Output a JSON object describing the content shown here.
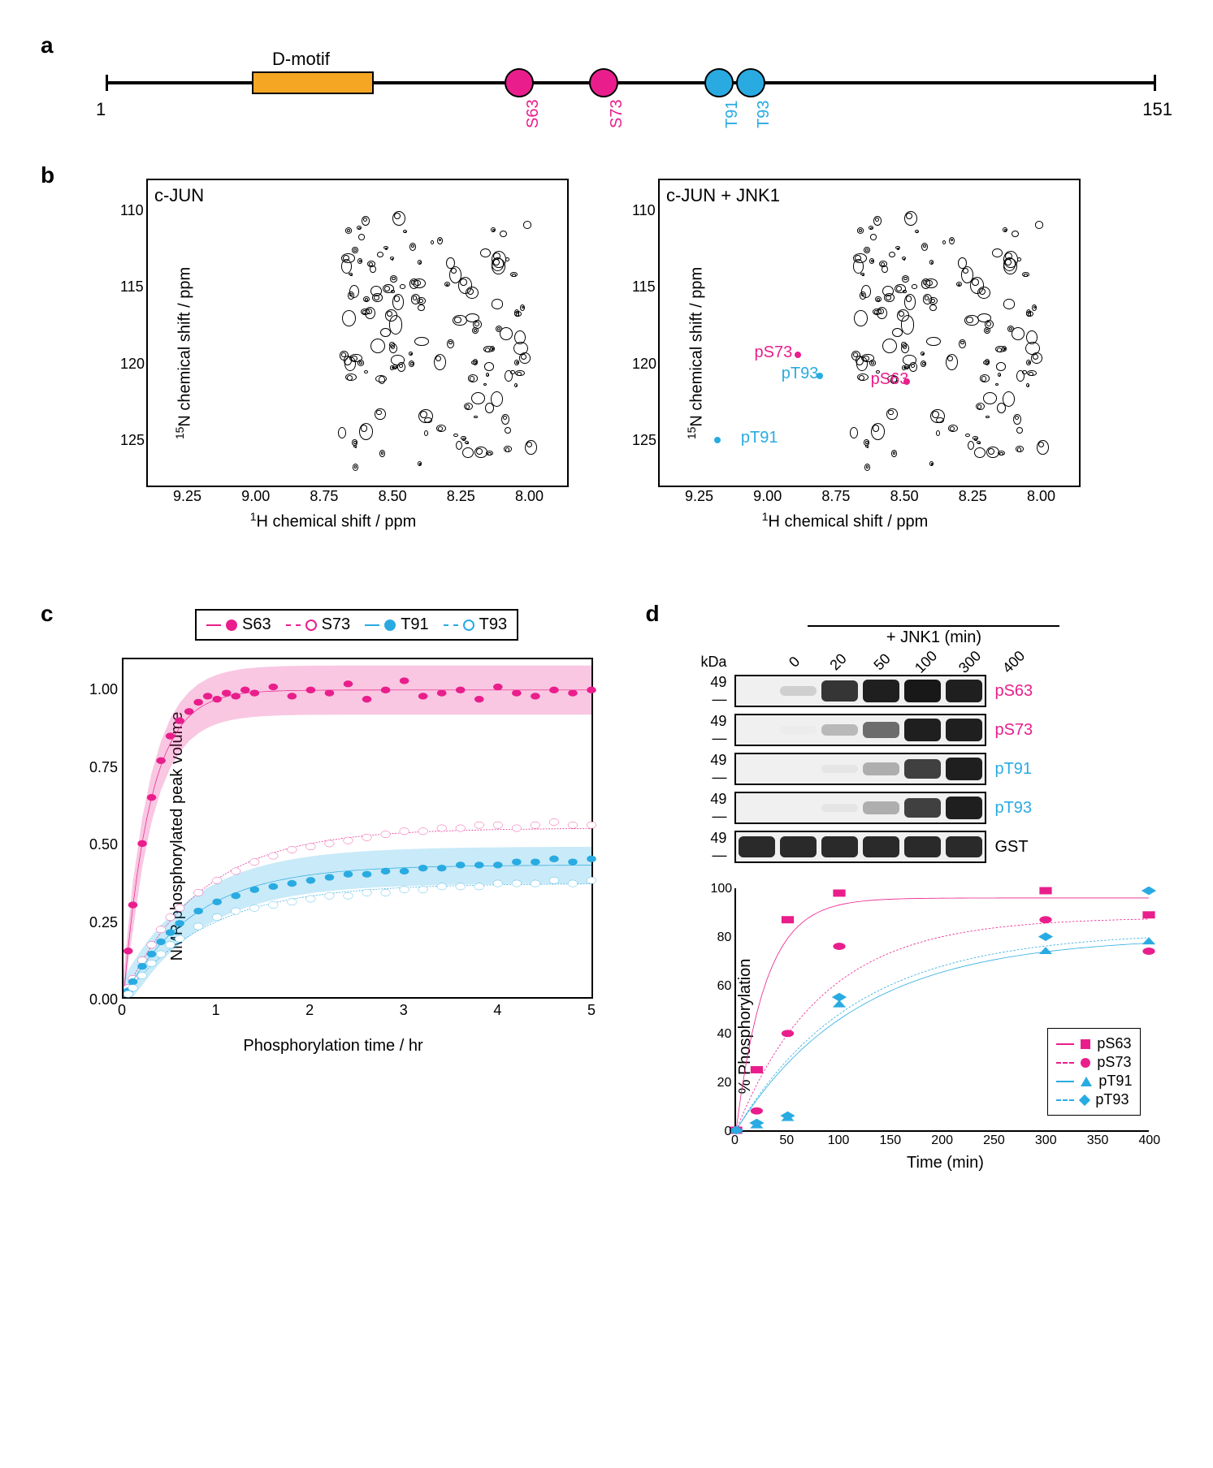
{
  "colors": {
    "magenta": "#e91e8c",
    "cyan": "#29abe2",
    "orange": "#f5a623",
    "black": "#000000",
    "gray_blob": "#333333",
    "band_dark": "#222222",
    "band_mid": "#666666",
    "band_light": "#cccccc",
    "band_none": "#efefef",
    "magenta_fill": "rgba(233,30,140,0.25)",
    "cyan_fill": "rgba(41,171,226,0.25)"
  },
  "panelA": {
    "label": "a",
    "dmotif": "D-motif",
    "start": "1",
    "end": "151",
    "residues": [
      {
        "name": "S63",
        "color": "magenta",
        "pos_pct": 38
      },
      {
        "name": "S73",
        "color": "magenta",
        "pos_pct": 46
      },
      {
        "name": "T91",
        "color": "cyan",
        "pos_pct": 57
      },
      {
        "name": "T93",
        "color": "cyan",
        "pos_pct": 60
      }
    ]
  },
  "panelB": {
    "label": "b",
    "ylabel": "15N chemical shift / ppm",
    "xlabel": "1H chemical shift / ppm",
    "left_title": "c-JUN",
    "right_title": "c-JUN + JNK1",
    "y_ticks": [
      110,
      115,
      120,
      125
    ],
    "y_range": [
      108,
      128
    ],
    "x_ticks": [
      9.25,
      9.0,
      8.75,
      8.5,
      8.25,
      8.0
    ],
    "x_range": [
      9.4,
      7.85
    ],
    "peak_labels": [
      {
        "text": "pS73",
        "color": "magenta",
        "h": 9.05,
        "n": 119.2
      },
      {
        "text": "pT93",
        "color": "cyan",
        "h": 8.95,
        "n": 120.6
      },
      {
        "text": "pS63",
        "color": "magenta",
        "h": 8.62,
        "n": 121.0
      },
      {
        "text": "pT91",
        "color": "cyan",
        "h": 9.1,
        "n": 124.8
      }
    ],
    "peak_dots": [
      {
        "color": "magenta",
        "h": 8.9,
        "n": 119.2
      },
      {
        "color": "cyan",
        "h": 8.82,
        "n": 120.6
      },
      {
        "color": "magenta",
        "h": 8.5,
        "n": 121.0
      },
      {
        "color": "cyan",
        "h": 9.2,
        "n": 124.8
      }
    ]
  },
  "panelC": {
    "label": "c",
    "ylabel": "NMR phosphorylated peak volume",
    "xlabel": "Phosphorylation time / hr",
    "legend": [
      {
        "text": "S63",
        "color": "magenta",
        "style": "filled"
      },
      {
        "text": "S73",
        "color": "magenta",
        "style": "open"
      },
      {
        "text": "T91",
        "color": "cyan",
        "style": "filled"
      },
      {
        "text": "T93",
        "color": "cyan",
        "style": "open"
      }
    ],
    "x_range": [
      0,
      5
    ],
    "y_range": [
      0,
      1.1
    ],
    "x_ticks": [
      0,
      1,
      2,
      3,
      4,
      5
    ],
    "y_ticks": [
      0.0,
      0.25,
      0.5,
      0.75,
      1.0
    ],
    "series": {
      "S63": {
        "color": "magenta",
        "style": "filled",
        "plateau": 1.0,
        "k": 3.5,
        "points": [
          [
            0.05,
            0.15
          ],
          [
            0.1,
            0.3
          ],
          [
            0.2,
            0.5
          ],
          [
            0.3,
            0.65
          ],
          [
            0.4,
            0.77
          ],
          [
            0.5,
            0.85
          ],
          [
            0.6,
            0.9
          ],
          [
            0.7,
            0.93
          ],
          [
            0.8,
            0.96
          ],
          [
            0.9,
            0.98
          ],
          [
            1.0,
            0.97
          ],
          [
            1.1,
            0.99
          ],
          [
            1.2,
            0.98
          ],
          [
            1.3,
            1.0
          ],
          [
            1.4,
            0.99
          ],
          [
            1.6,
            1.01
          ],
          [
            1.8,
            0.98
          ],
          [
            2.0,
            1.0
          ],
          [
            2.2,
            0.99
          ],
          [
            2.4,
            1.02
          ],
          [
            2.6,
            0.97
          ],
          [
            2.8,
            1.0
          ],
          [
            3.0,
            1.03
          ],
          [
            3.2,
            0.98
          ],
          [
            3.4,
            0.99
          ],
          [
            3.6,
            1.0
          ],
          [
            3.8,
            0.97
          ],
          [
            4.0,
            1.01
          ],
          [
            4.2,
            0.99
          ],
          [
            4.4,
            0.98
          ],
          [
            4.6,
            1.0
          ],
          [
            4.8,
            0.99
          ],
          [
            5.0,
            1.0
          ]
        ]
      },
      "S73": {
        "color": "magenta",
        "style": "open",
        "plateau": 0.55,
        "k": 1.2,
        "points": [
          [
            0.05,
            0.03
          ],
          [
            0.1,
            0.06
          ],
          [
            0.2,
            0.12
          ],
          [
            0.3,
            0.17
          ],
          [
            0.4,
            0.22
          ],
          [
            0.5,
            0.26
          ],
          [
            0.6,
            0.29
          ],
          [
            0.8,
            0.34
          ],
          [
            1.0,
            0.38
          ],
          [
            1.2,
            0.41
          ],
          [
            1.4,
            0.44
          ],
          [
            1.6,
            0.46
          ],
          [
            1.8,
            0.48
          ],
          [
            2.0,
            0.49
          ],
          [
            2.2,
            0.5
          ],
          [
            2.4,
            0.51
          ],
          [
            2.6,
            0.52
          ],
          [
            2.8,
            0.53
          ],
          [
            3.0,
            0.54
          ],
          [
            3.2,
            0.54
          ],
          [
            3.4,
            0.55
          ],
          [
            3.6,
            0.55
          ],
          [
            3.8,
            0.56
          ],
          [
            4.0,
            0.56
          ],
          [
            4.2,
            0.55
          ],
          [
            4.4,
            0.56
          ],
          [
            4.6,
            0.57
          ],
          [
            4.8,
            0.56
          ],
          [
            5.0,
            0.56
          ]
        ]
      },
      "T91": {
        "color": "cyan",
        "style": "filled",
        "plateau": 0.43,
        "k": 1.3,
        "points": [
          [
            0.05,
            0.02
          ],
          [
            0.1,
            0.05
          ],
          [
            0.2,
            0.1
          ],
          [
            0.3,
            0.14
          ],
          [
            0.4,
            0.18
          ],
          [
            0.5,
            0.21
          ],
          [
            0.6,
            0.24
          ],
          [
            0.8,
            0.28
          ],
          [
            1.0,
            0.31
          ],
          [
            1.2,
            0.33
          ],
          [
            1.4,
            0.35
          ],
          [
            1.6,
            0.36
          ],
          [
            1.8,
            0.37
          ],
          [
            2.0,
            0.38
          ],
          [
            2.2,
            0.39
          ],
          [
            2.4,
            0.4
          ],
          [
            2.6,
            0.4
          ],
          [
            2.8,
            0.41
          ],
          [
            3.0,
            0.41
          ],
          [
            3.2,
            0.42
          ],
          [
            3.4,
            0.42
          ],
          [
            3.6,
            0.43
          ],
          [
            3.8,
            0.43
          ],
          [
            4.0,
            0.43
          ],
          [
            4.2,
            0.44
          ],
          [
            4.4,
            0.44
          ],
          [
            4.6,
            0.45
          ],
          [
            4.8,
            0.44
          ],
          [
            5.0,
            0.45
          ]
        ]
      },
      "T93": {
        "color": "cyan",
        "style": "open",
        "plateau": 0.37,
        "k": 1.1,
        "points": [
          [
            0.05,
            0.01
          ],
          [
            0.1,
            0.03
          ],
          [
            0.2,
            0.07
          ],
          [
            0.3,
            0.11
          ],
          [
            0.4,
            0.14
          ],
          [
            0.5,
            0.17
          ],
          [
            0.6,
            0.19
          ],
          [
            0.8,
            0.23
          ],
          [
            1.0,
            0.26
          ],
          [
            1.2,
            0.28
          ],
          [
            1.4,
            0.29
          ],
          [
            1.6,
            0.3
          ],
          [
            1.8,
            0.31
          ],
          [
            2.0,
            0.32
          ],
          [
            2.2,
            0.33
          ],
          [
            2.4,
            0.33
          ],
          [
            2.6,
            0.34
          ],
          [
            2.8,
            0.34
          ],
          [
            3.0,
            0.35
          ],
          [
            3.2,
            0.35
          ],
          [
            3.4,
            0.36
          ],
          [
            3.6,
            0.36
          ],
          [
            3.8,
            0.36
          ],
          [
            4.0,
            0.37
          ],
          [
            4.2,
            0.37
          ],
          [
            4.4,
            0.37
          ],
          [
            4.6,
            0.38
          ],
          [
            4.8,
            0.37
          ],
          [
            5.0,
            0.38
          ]
        ]
      }
    }
  },
  "panelD": {
    "label": "d",
    "jnk_label": "+ JNK1 (min)",
    "kda_label": "kDa",
    "kda_value": "49",
    "time_points": [
      "0",
      "20",
      "50",
      "100",
      "300",
      "400"
    ],
    "blots": [
      {
        "name": "pS63",
        "color": "magenta",
        "intensities": [
          0.0,
          0.15,
          0.85,
          0.95,
          0.98,
          0.95
        ]
      },
      {
        "name": "pS73",
        "color": "magenta",
        "intensities": [
          0.0,
          0.02,
          0.25,
          0.6,
          0.95,
          0.95
        ]
      },
      {
        "name": "pT91",
        "color": "cyan",
        "intensities": [
          0.0,
          0.0,
          0.05,
          0.3,
          0.8,
          0.95
        ]
      },
      {
        "name": "pT93",
        "color": "cyan",
        "intensities": [
          0.0,
          0.0,
          0.05,
          0.3,
          0.8,
          0.95
        ]
      },
      {
        "name": "GST",
        "color": "black",
        "intensities": [
          0.9,
          0.9,
          0.9,
          0.9,
          0.9,
          0.9
        ]
      }
    ],
    "chart": {
      "ylabel": "% Phosphorylation",
      "xlabel": "Time (min)",
      "x_range": [
        0,
        400
      ],
      "y_range": [
        0,
        100
      ],
      "x_ticks": [
        0,
        50,
        100,
        150,
        200,
        250,
        300,
        350,
        400
      ],
      "y_ticks": [
        0,
        20,
        40,
        60,
        80,
        100
      ],
      "legend": [
        {
          "text": "pS63",
          "color": "magenta",
          "marker": "square",
          "dash": "solid"
        },
        {
          "text": "pS73",
          "color": "magenta",
          "marker": "circle",
          "dash": "dashed"
        },
        {
          "text": "pT91",
          "color": "cyan",
          "marker": "triangle",
          "dash": "solid"
        },
        {
          "text": "pT93",
          "color": "cyan",
          "marker": "diamond",
          "dash": "dashed"
        }
      ],
      "series": {
        "pS63": {
          "color": "magenta",
          "marker": "square",
          "dash": "solid",
          "plateau": 96,
          "k": 0.035,
          "points": [
            [
              0,
              0
            ],
            [
              20,
              25
            ],
            [
              50,
              87
            ],
            [
              100,
              98
            ],
            [
              300,
              99
            ],
            [
              400,
              89
            ]
          ]
        },
        "pS73": {
          "color": "magenta",
          "marker": "circle",
          "dash": "dashed",
          "plateau": 88,
          "k": 0.012,
          "points": [
            [
              0,
              0
            ],
            [
              20,
              8
            ],
            [
              50,
              40
            ],
            [
              100,
              76
            ],
            [
              300,
              87
            ],
            [
              400,
              74
            ]
          ]
        },
        "pT91": {
          "color": "cyan",
          "marker": "triangle",
          "dash": "solid",
          "plateau": 80,
          "k": 0.0085,
          "points": [
            [
              0,
              0
            ],
            [
              20,
              2
            ],
            [
              50,
              5
            ],
            [
              100,
              52
            ],
            [
              300,
              74
            ],
            [
              400,
              78
            ]
          ]
        },
        "pT93": {
          "color": "cyan",
          "marker": "diamond",
          "dash": "dashed",
          "plateau": 82,
          "k": 0.0088,
          "points": [
            [
              0,
              0
            ],
            [
              20,
              3
            ],
            [
              50,
              6
            ],
            [
              100,
              55
            ],
            [
              300,
              80
            ],
            [
              400,
              99
            ]
          ]
        }
      }
    }
  }
}
